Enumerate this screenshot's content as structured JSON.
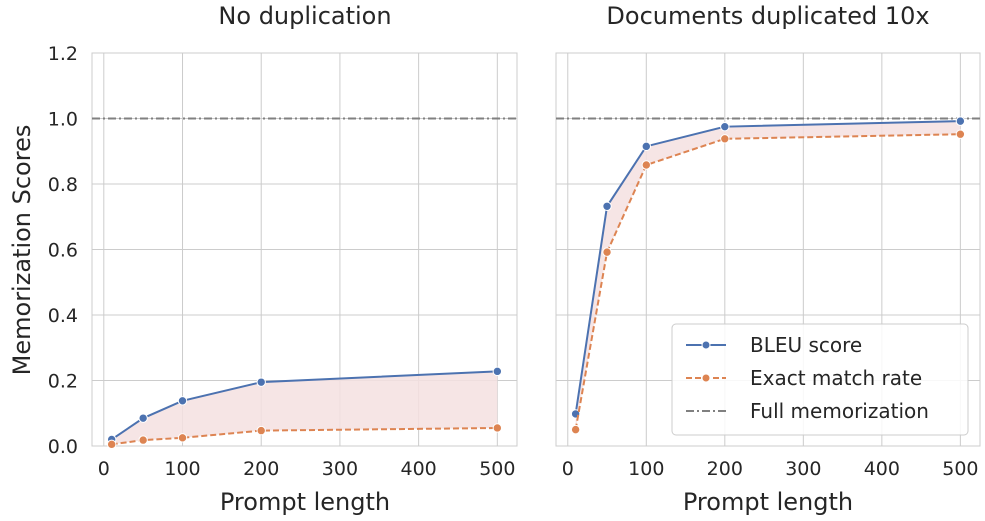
{
  "colors": {
    "bleu": "#4C72B0",
    "exact": "#DD8452",
    "full": "#808080",
    "fill": "#f4e0e0"
  },
  "chart_data": [
    {
      "type": "line",
      "title": "No duplication",
      "xlabel": "Prompt length",
      "ylabel": "Memorization Scores",
      "x": [
        10,
        50,
        100,
        200,
        500
      ],
      "xlim": [
        -15,
        525
      ],
      "ylim": [
        0,
        1.2
      ],
      "xticks": [
        "0",
        "100",
        "200",
        "300",
        "400",
        "500"
      ],
      "yticks": [
        "0.0",
        "0.2",
        "0.4",
        "0.6",
        "0.8",
        "1.0",
        "1.2"
      ],
      "grid": true,
      "series": [
        {
          "name": "BLEU score",
          "values": [
            0.02,
            0.085,
            0.138,
            0.195,
            0.228
          ]
        },
        {
          "name": "Exact match rate",
          "values": [
            0.005,
            0.018,
            0.025,
            0.047,
            0.055
          ]
        },
        {
          "name": "Full memorization",
          "constant": 1.0
        }
      ]
    },
    {
      "type": "line",
      "title": "Documents duplicated 10x",
      "xlabel": "Prompt length",
      "ylabel": "",
      "x": [
        10,
        50,
        100,
        200,
        500
      ],
      "xlim": [
        -15,
        525
      ],
      "ylim": [
        0,
        1.2
      ],
      "xticks": [
        "0",
        "100",
        "200",
        "300",
        "400",
        "500"
      ],
      "yticks": [],
      "grid": true,
      "legend": "lower-right",
      "series": [
        {
          "name": "BLEU score",
          "values": [
            0.098,
            0.732,
            0.915,
            0.975,
            0.992
          ]
        },
        {
          "name": "Exact match rate",
          "values": [
            0.05,
            0.592,
            0.858,
            0.938,
            0.952
          ]
        },
        {
          "name": "Full memorization",
          "constant": 1.0
        }
      ]
    }
  ]
}
